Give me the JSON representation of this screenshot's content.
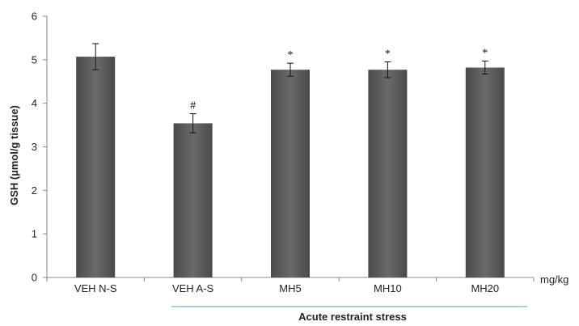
{
  "chart_data": {
    "type": "bar",
    "categories": [
      "VEH N-S",
      "VEH A-S",
      "MH5",
      "MH10",
      "MH20"
    ],
    "values": [
      5.07,
      3.54,
      4.77,
      4.77,
      4.82
    ],
    "errors": [
      0.3,
      0.22,
      0.15,
      0.18,
      0.15
    ],
    "annotations": [
      "",
      "#",
      "*",
      "*",
      "*"
    ],
    "ylabel": "GSH (µmol/g tissue)",
    "xunit": "mg/kg",
    "group_label": "Acute restraint stress",
    "yticks": [
      0,
      1,
      2,
      3,
      4,
      5,
      6
    ],
    "ylim": [
      0,
      6
    ],
    "bar_color": "#5a5a5a",
    "group_line_color": "#8fc1cc",
    "grid": false,
    "legend": "none"
  }
}
